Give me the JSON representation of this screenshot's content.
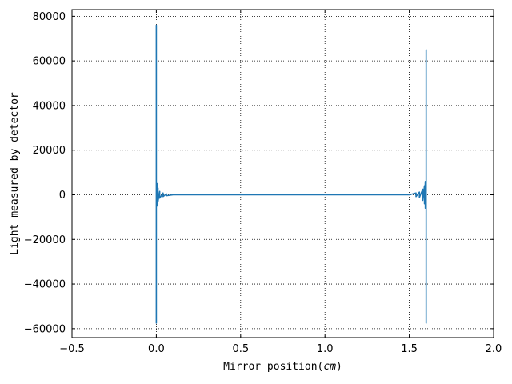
{
  "chart_data": {
    "type": "line",
    "title": "",
    "xlabel": "Mirror position",
    "xlabel_unit": "cm",
    "ylabel": "Light measured by detector",
    "xlim": [
      -0.5,
      2.0
    ],
    "ylim": [
      -64000,
      83000
    ],
    "xticks": [
      -0.5,
      0.0,
      0.5,
      1.0,
      1.5,
      2.0
    ],
    "xtick_labels": [
      "−0.5",
      "0.0",
      "0.5",
      "1.0",
      "1.5",
      "2.0"
    ],
    "yticks": [
      -60000,
      -40000,
      -20000,
      0,
      20000,
      40000,
      60000,
      80000
    ],
    "ytick_labels": [
      "−60000",
      "−40000",
      "−20000",
      "0",
      "20000",
      "40000",
      "60000",
      "80000"
    ],
    "grid": true,
    "grid_style": "dotted",
    "legend": "none",
    "series": [
      {
        "color": "#1f77b4",
        "x": [
          0.0,
          0.0,
          0.0,
          0.0,
          0.0,
          0.0,
          0.0,
          0.0,
          0.005,
          0.005,
          0.01,
          0.01,
          0.02,
          0.02,
          0.04,
          0.04,
          0.06,
          0.06,
          0.1,
          0.15,
          0.2,
          0.3,
          0.5,
          0.7,
          0.9,
          1.1,
          1.3,
          1.45,
          1.5,
          1.54,
          1.54,
          1.56,
          1.56,
          1.58,
          1.58,
          1.59,
          1.59,
          1.595,
          1.595,
          1.6,
          1.6,
          1.6,
          1.6,
          1.6,
          1.6,
          1.6,
          1.6,
          1.6
        ],
        "y": [
          0,
          76000,
          -57500,
          31000,
          -30000,
          10000,
          -15000,
          0,
          5000,
          -5000,
          3000,
          -3000,
          1500,
          -1500,
          800,
          -800,
          400,
          -400,
          0,
          0,
          0,
          0,
          0,
          0,
          0,
          0,
          0,
          0,
          0,
          800,
          -800,
          1200,
          -1200,
          2500,
          -2500,
          4000,
          -4000,
          6000,
          -6000,
          0,
          65000,
          -57500,
          31000,
          -30000,
          10000,
          -15000,
          0,
          0
        ]
      }
    ]
  }
}
